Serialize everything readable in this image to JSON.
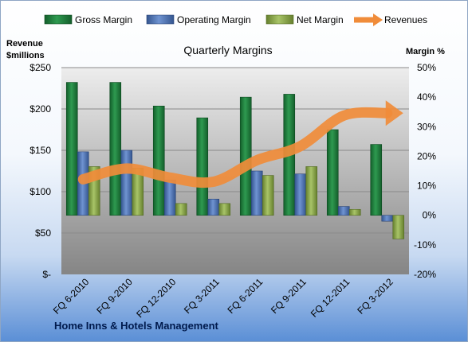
{
  "chart_data": {
    "type": "bar",
    "title": "Quarterly Margins",
    "footer": "Home Inns & Hotels Management",
    "left_axis": {
      "label_line1": "Revenue",
      "label_line2": "$millions",
      "range": [
        0,
        250
      ],
      "ticks": [
        {
          "value": 0,
          "label": "$-"
        },
        {
          "value": 50,
          "label": "$50"
        },
        {
          "value": 100,
          "label": "$100"
        },
        {
          "value": 150,
          "label": "$150"
        },
        {
          "value": 200,
          "label": "$200"
        },
        {
          "value": 250,
          "label": "$250"
        }
      ]
    },
    "right_axis": {
      "label": "Margin %",
      "range": [
        -20,
        50
      ],
      "ticks": [
        {
          "value": -20,
          "label": "-20%"
        },
        {
          "value": -10,
          "label": "-10%"
        },
        {
          "value": 0,
          "label": "0%"
        },
        {
          "value": 10,
          "label": "10%"
        },
        {
          "value": 20,
          "label": "20%"
        },
        {
          "value": 30,
          "label": "30%"
        },
        {
          "value": 40,
          "label": "40%"
        },
        {
          "value": 50,
          "label": "50%"
        }
      ]
    },
    "categories": [
      "FQ 6-2010",
      "FQ 9-2010",
      "FQ 12-2010",
      "FQ 3-2011",
      "FQ 6-2011",
      "FQ 9-2011",
      "FQ 12-2011",
      "FQ 3-2012"
    ],
    "series": [
      {
        "name": "Gross Margin",
        "axis": "right",
        "color": "#1e7b3c",
        "values": [
          45,
          45,
          37,
          33,
          40,
          41,
          29,
          24
        ]
      },
      {
        "name": "Operating Margin",
        "axis": "right",
        "color": "#4a6fb5",
        "values": [
          21.5,
          22,
          12,
          5.5,
          15,
          14,
          3,
          -2
        ]
      },
      {
        "name": "Net Margin",
        "axis": "right",
        "color": "#8caa4a",
        "values": [
          16.5,
          16,
          4,
          4,
          13.5,
          16.5,
          2,
          -8
        ]
      }
    ],
    "line_series": {
      "name": "Revenues",
      "axis": "left",
      "color": "#f08c3a",
      "values": [
        115,
        128,
        117,
        112,
        138,
        155,
        192,
        195
      ]
    },
    "legend_position": "top",
    "grid": true
  }
}
